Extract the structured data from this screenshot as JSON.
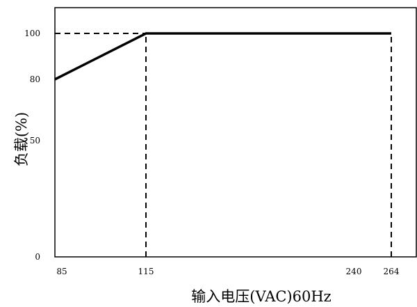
{
  "chart_data": {
    "type": "line",
    "title": "",
    "xlabel": "输入电压(VAC)60Hz",
    "ylabel": "负载(%)",
    "x_ticks": [
      85,
      115,
      240,
      264
    ],
    "y_ticks": [
      0,
      50,
      80,
      100
    ],
    "xlim": [
      85,
      264
    ],
    "ylim": [
      0,
      100
    ],
    "grid": false,
    "series": [
      {
        "points": [
          [
            85,
            80
          ],
          [
            115,
            100
          ],
          [
            264,
            100
          ]
        ]
      }
    ],
    "reference_lines": [
      {
        "from": [
          85,
          100
        ],
        "to": [
          115,
          100
        ]
      },
      {
        "from": [
          115,
          0
        ],
        "to": [
          115,
          100
        ]
      },
      {
        "from": [
          264,
          0
        ],
        "to": [
          264,
          100
        ]
      }
    ]
  }
}
